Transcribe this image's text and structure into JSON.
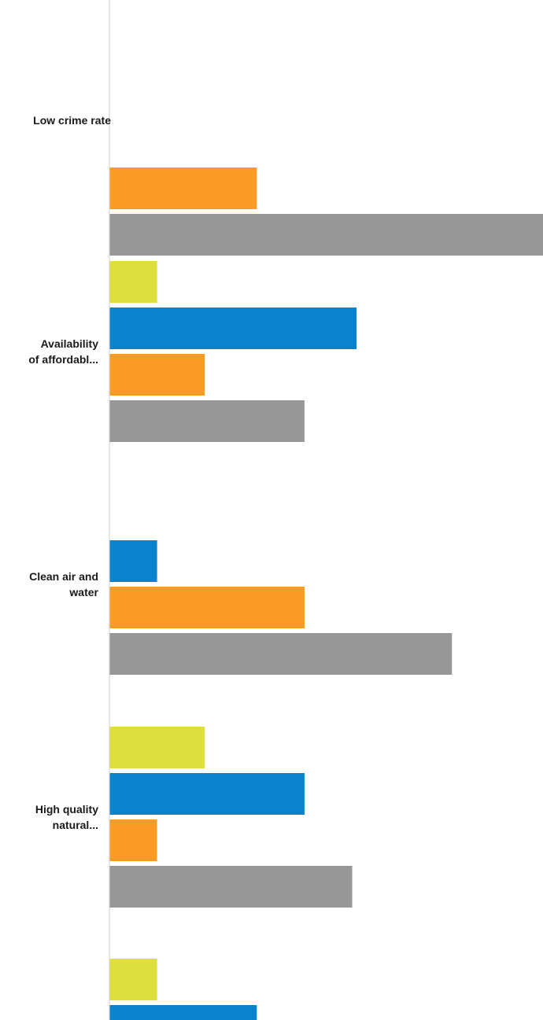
{
  "chart_data": {
    "type": "bar",
    "orientation": "horizontal",
    "categories": [
      "Low crime rate",
      "Availability of affordabl...",
      "Clean air and water",
      "High quality natural...",
      ""
    ],
    "category_label_lines": [
      [
        "Low crime rate"
      ],
      [
        "Availability",
        "of affordabl..."
      ],
      [
        "Clean air and",
        "water"
      ],
      [
        "High quality",
        "natural..."
      ],
      []
    ],
    "series": [
      {
        "color": "#dede3e",
        "values": [
          null,
          11,
          null,
          22,
          11
        ]
      },
      {
        "color": "#0a82cc",
        "values": [
          null,
          57,
          11,
          45,
          34
        ]
      },
      {
        "color": "#fa9c23",
        "values": [
          34,
          22,
          45,
          11,
          null
        ]
      },
      {
        "color": "#979797",
        "values": [
          100,
          45,
          79,
          56,
          null
        ]
      }
    ],
    "xlim": [
      0,
      100
    ],
    "axis": "left",
    "grid": false,
    "legend": "none"
  }
}
